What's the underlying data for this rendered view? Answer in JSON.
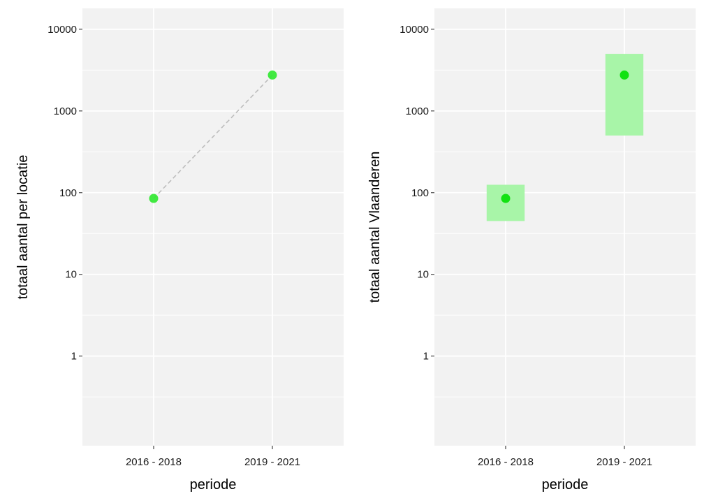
{
  "chart_data": [
    {
      "type": "line",
      "xlabel": "periode",
      "ylabel": "totaal aantal per locatie",
      "y_scale": "log10",
      "ylim": [
        0.08,
        18000
      ],
      "y_ticks": [
        1,
        10,
        100,
        1000,
        10000
      ],
      "y_tick_labels": [
        "1",
        "10",
        "100",
        "1000",
        "10000"
      ],
      "categories": [
        "2016 - 2018",
        "2019 - 2021"
      ],
      "series": [
        {
          "values": [
            85,
            2750
          ],
          "color": "#2ee82e",
          "line_style": "dashed",
          "line_color": "#bdbdbd"
        }
      ],
      "grid": true
    },
    {
      "type": "scatter",
      "xlabel": "periode",
      "ylabel": "totaal aantal Vlaanderen",
      "y_scale": "log10",
      "ylim": [
        0.08,
        18000
      ],
      "y_ticks": [
        1,
        10,
        100,
        1000,
        10000
      ],
      "y_tick_labels": [
        "1",
        "10",
        "100",
        "1000",
        "10000"
      ],
      "categories": [
        "2016 - 2018",
        "2019 - 2021"
      ],
      "series": [
        {
          "values": [
            85,
            2750
          ],
          "lower": [
            45,
            500
          ],
          "upper": [
            125,
            5000
          ],
          "color": "#00e000",
          "interval_color": "#a8f5a8"
        }
      ],
      "grid": true
    }
  ]
}
